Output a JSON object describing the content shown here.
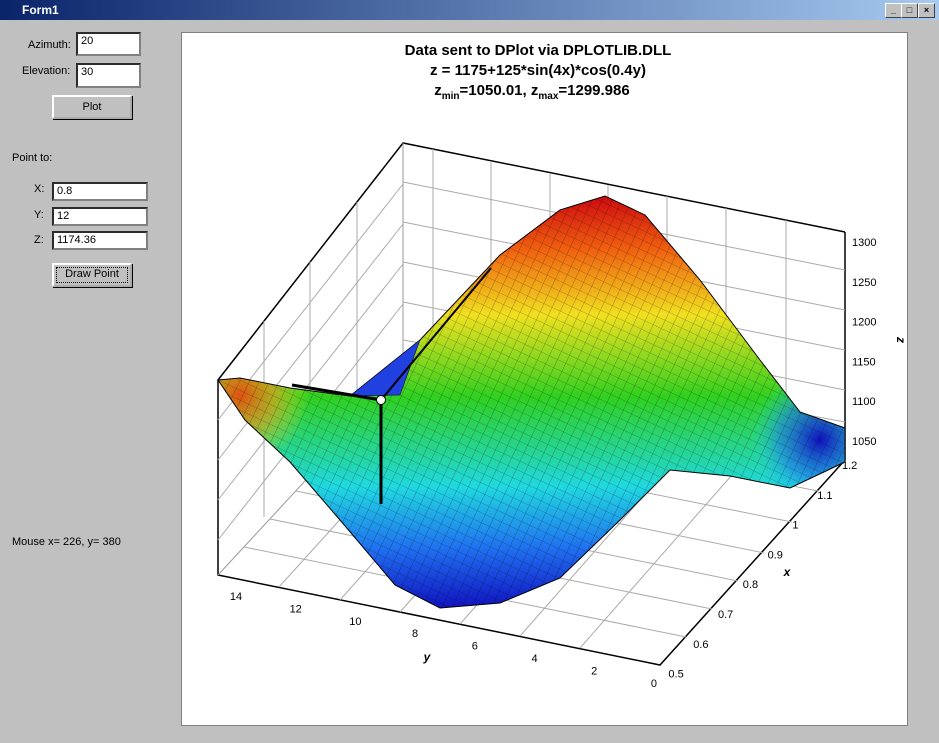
{
  "window": {
    "title": "Form1"
  },
  "form": {
    "azimuth_label": "Azimuth:",
    "azimuth": "20",
    "elevation_label": "Elevation:",
    "elevation": "30",
    "plot_button": "Plot",
    "point_to_label": "Point to:",
    "x_label": "X:",
    "x": "0.8",
    "y_label": "Y:",
    "y": "12",
    "z_label": "Z:",
    "z": "1174.36",
    "draw_point_button": "Draw Point",
    "mouse_status": "Mouse x= 226, y= 380"
  },
  "plot": {
    "title": "Data sent to DPlot via DPLOTLIB.DLL",
    "subtitle": "z = 1175+125*sin(4x)*cos(0.4y)",
    "range_parts": [
      "z",
      "min",
      "=1050.01, z",
      "max",
      "=1299.986"
    ],
    "z_axis_label": "z",
    "z_ticks": [
      "1300",
      "1250",
      "1200",
      "1150",
      "1100",
      "1050"
    ],
    "x_axis_label": "x",
    "x_ticks": [
      "1.2",
      "1.1",
      "1",
      "0.9",
      "0.8",
      "0.7",
      "0.6",
      "0.5"
    ],
    "y_axis_label": "y",
    "y_ticks": [
      "14",
      "12",
      "10",
      "8",
      "6",
      "4",
      "2",
      "0"
    ]
  }
}
